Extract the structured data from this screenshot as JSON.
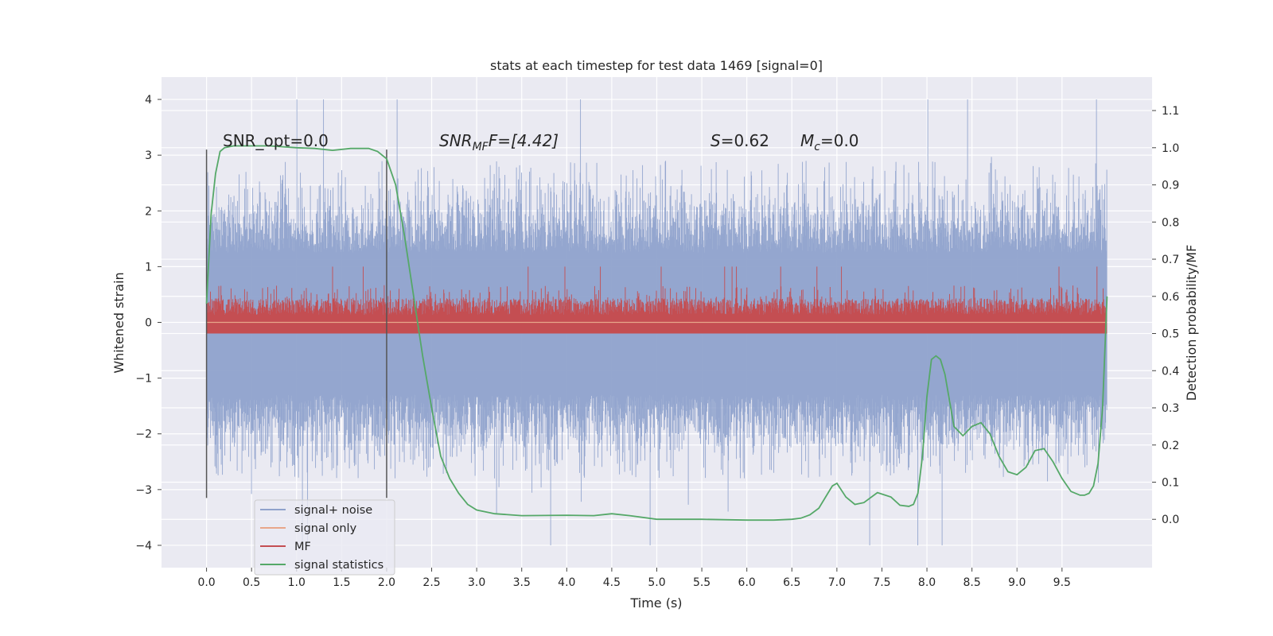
{
  "chart_data": {
    "type": "line",
    "title": "stats at each timestep for test data 1469 [signal=0]",
    "xlabel": "Time (s)",
    "ylabel": "Whitened strain",
    "ylabel_right": "Detection probability/MF",
    "xlim": [
      -0.5,
      10.5
    ],
    "ylim": [
      -4.4,
      4.4
    ],
    "ylim_right": [
      -0.13,
      1.19
    ],
    "x_ticks": [
      "0.0",
      "0.5",
      "1.0",
      "1.5",
      "2.0",
      "2.5",
      "3.0",
      "3.5",
      "4.0",
      "4.5",
      "5.0",
      "5.5",
      "6.0",
      "6.5",
      "7.0",
      "7.5",
      "8.0",
      "8.5",
      "9.0",
      "9.5"
    ],
    "y_ticks": [
      "4",
      "3",
      "2",
      "1",
      "0",
      "−1",
      "−2",
      "−3",
      "−4"
    ],
    "y_right_ticks": [
      "1.1",
      "1.0",
      "0.9",
      "0.8",
      "0.7",
      "0.6",
      "0.5",
      "0.4",
      "0.3",
      "0.2",
      "0.1",
      "0.0"
    ],
    "grid": true,
    "legend_position": "lower-left",
    "annotations": {
      "snr_opt": "SNR_opt=0.0",
      "snr_mf_base": "SNR",
      "snr_mf_sub": "MF",
      "snr_mf_rest": "F=[4.42]",
      "s_label": "S",
      "s_value": "=0.62",
      "mc_base": "M",
      "mc_sub": "c",
      "mc_value": "=0.0"
    },
    "markers_x": [
      0.0,
      2.0
    ],
    "series": [
      {
        "name": "signal+ noise",
        "color": "#8fa2cc",
        "axis": "left",
        "description_of_values": "white noise strain, roughly within [-2.8, 2.9] with spikes to about -4.0 and 4.0",
        "range": [
          -4.0,
          4.0
        ],
        "x_range": [
          0.0,
          10.0
        ]
      },
      {
        "name": "signal only",
        "color": "#e8a68a",
        "axis": "left",
        "x": [
          0.0,
          10.0
        ],
        "y": [
          0.0,
          0.0
        ]
      },
      {
        "name": "MF",
        "color": "#c44e52",
        "axis": "right",
        "range": [
          0.5,
          0.68
        ],
        "x_range": [
          0.0,
          10.0
        ]
      },
      {
        "name": "signal statistics",
        "color": "#55a868",
        "axis": "right",
        "x": [
          0.0,
          0.05,
          0.1,
          0.15,
          0.2,
          0.3,
          0.5,
          0.7,
          1.0,
          1.2,
          1.4,
          1.6,
          1.8,
          1.9,
          2.0,
          2.1,
          2.2,
          2.3,
          2.4,
          2.5,
          2.6,
          2.7,
          2.8,
          2.9,
          3.0,
          3.2,
          3.5,
          4.0,
          4.3,
          4.5,
          4.7,
          5.0,
          5.5,
          6.0,
          6.3,
          6.5,
          6.6,
          6.7,
          6.8,
          6.9,
          6.95,
          7.0,
          7.1,
          7.2,
          7.3,
          7.45,
          7.6,
          7.7,
          7.8,
          7.85,
          7.9,
          7.95,
          8.0,
          8.05,
          8.1,
          8.15,
          8.2,
          8.3,
          8.4,
          8.5,
          8.6,
          8.7,
          8.8,
          8.9,
          9.0,
          9.1,
          9.2,
          9.3,
          9.4,
          9.5,
          9.6,
          9.7,
          9.75,
          9.8,
          9.85,
          9.9,
          9.95,
          10.0
        ],
        "y": [
          0.58,
          0.82,
          0.93,
          0.99,
          1.0,
          1.005,
          1.005,
          1.005,
          1.0,
          0.998,
          0.993,
          0.998,
          0.998,
          0.99,
          0.97,
          0.9,
          0.76,
          0.6,
          0.44,
          0.3,
          0.17,
          0.11,
          0.07,
          0.04,
          0.025,
          0.015,
          0.01,
          0.011,
          0.01,
          0.015,
          0.01,
          0.0,
          0.0,
          -0.002,
          -0.002,
          0.0,
          0.003,
          0.012,
          0.03,
          0.07,
          0.09,
          0.097,
          0.06,
          0.04,
          0.045,
          0.072,
          0.06,
          0.038,
          0.035,
          0.04,
          0.07,
          0.17,
          0.33,
          0.43,
          0.44,
          0.43,
          0.39,
          0.25,
          0.225,
          0.25,
          0.26,
          0.23,
          0.17,
          0.128,
          0.12,
          0.14,
          0.185,
          0.19,
          0.155,
          0.11,
          0.075,
          0.065,
          0.065,
          0.07,
          0.09,
          0.15,
          0.3,
          0.6
        ]
      }
    ]
  }
}
